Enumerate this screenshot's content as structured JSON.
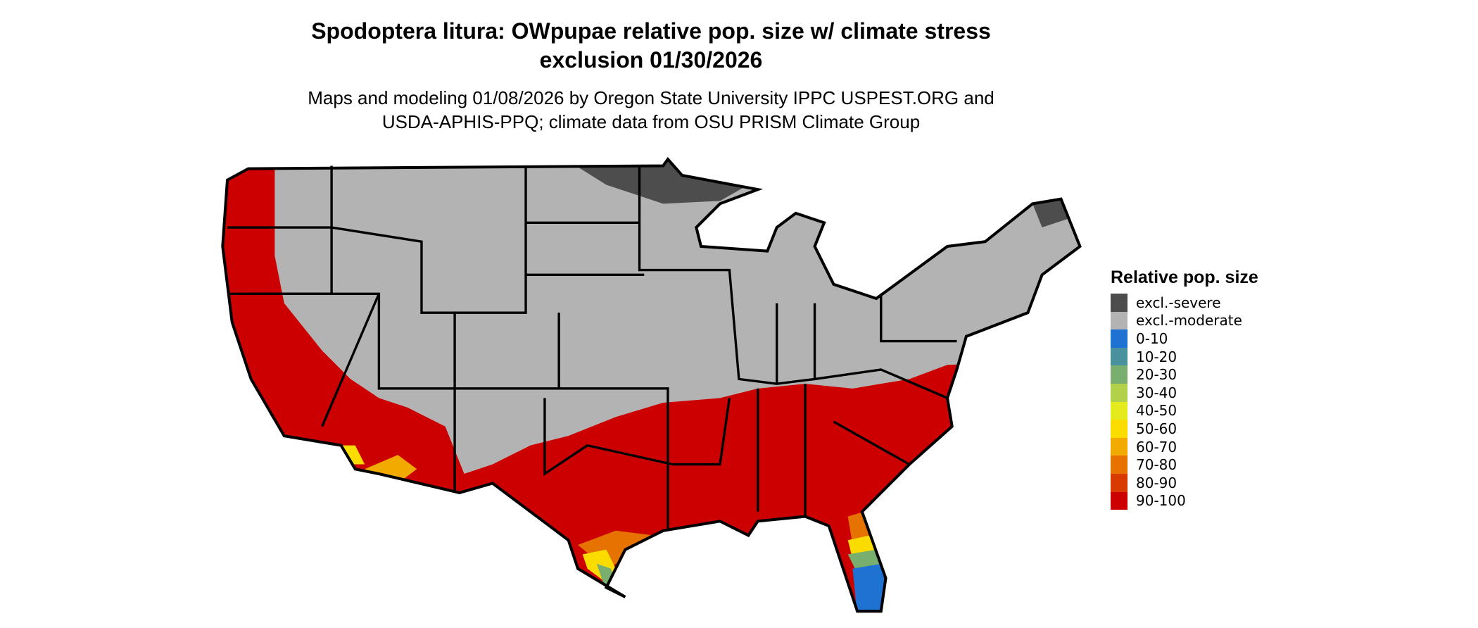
{
  "title": "Spodoptera litura: OWpupae relative pop. size w/ climate stress exclusion 01/30/2026",
  "subtitle": "Maps and modeling 01/08/2026 by Oregon State University IPPC USPEST.ORG and USDA-APHIS-PPQ; climate data from OSU PRISM Climate Group",
  "legend": {
    "title": "Relative pop. size",
    "entries": [
      {
        "label": "excl.-severe",
        "color": "#4d4d4d"
      },
      {
        "label": "excl.-moderate",
        "color": "#b3b3b3"
      },
      {
        "label": "0-10",
        "color": "#1e73d2"
      },
      {
        "label": "10-20",
        "color": "#4a91a0"
      },
      {
        "label": "20-30",
        "color": "#78ae6e"
      },
      {
        "label": "30-40",
        "color": "#b2d14a"
      },
      {
        "label": "40-50",
        "color": "#e3ea1e"
      },
      {
        "label": "50-60",
        "color": "#fadc00"
      },
      {
        "label": "60-70",
        "color": "#f0aa00"
      },
      {
        "label": "70-80",
        "color": "#e67300"
      },
      {
        "label": "80-90",
        "color": "#d83a00"
      },
      {
        "label": "90-100",
        "color": "#cc0000"
      }
    ]
  }
}
